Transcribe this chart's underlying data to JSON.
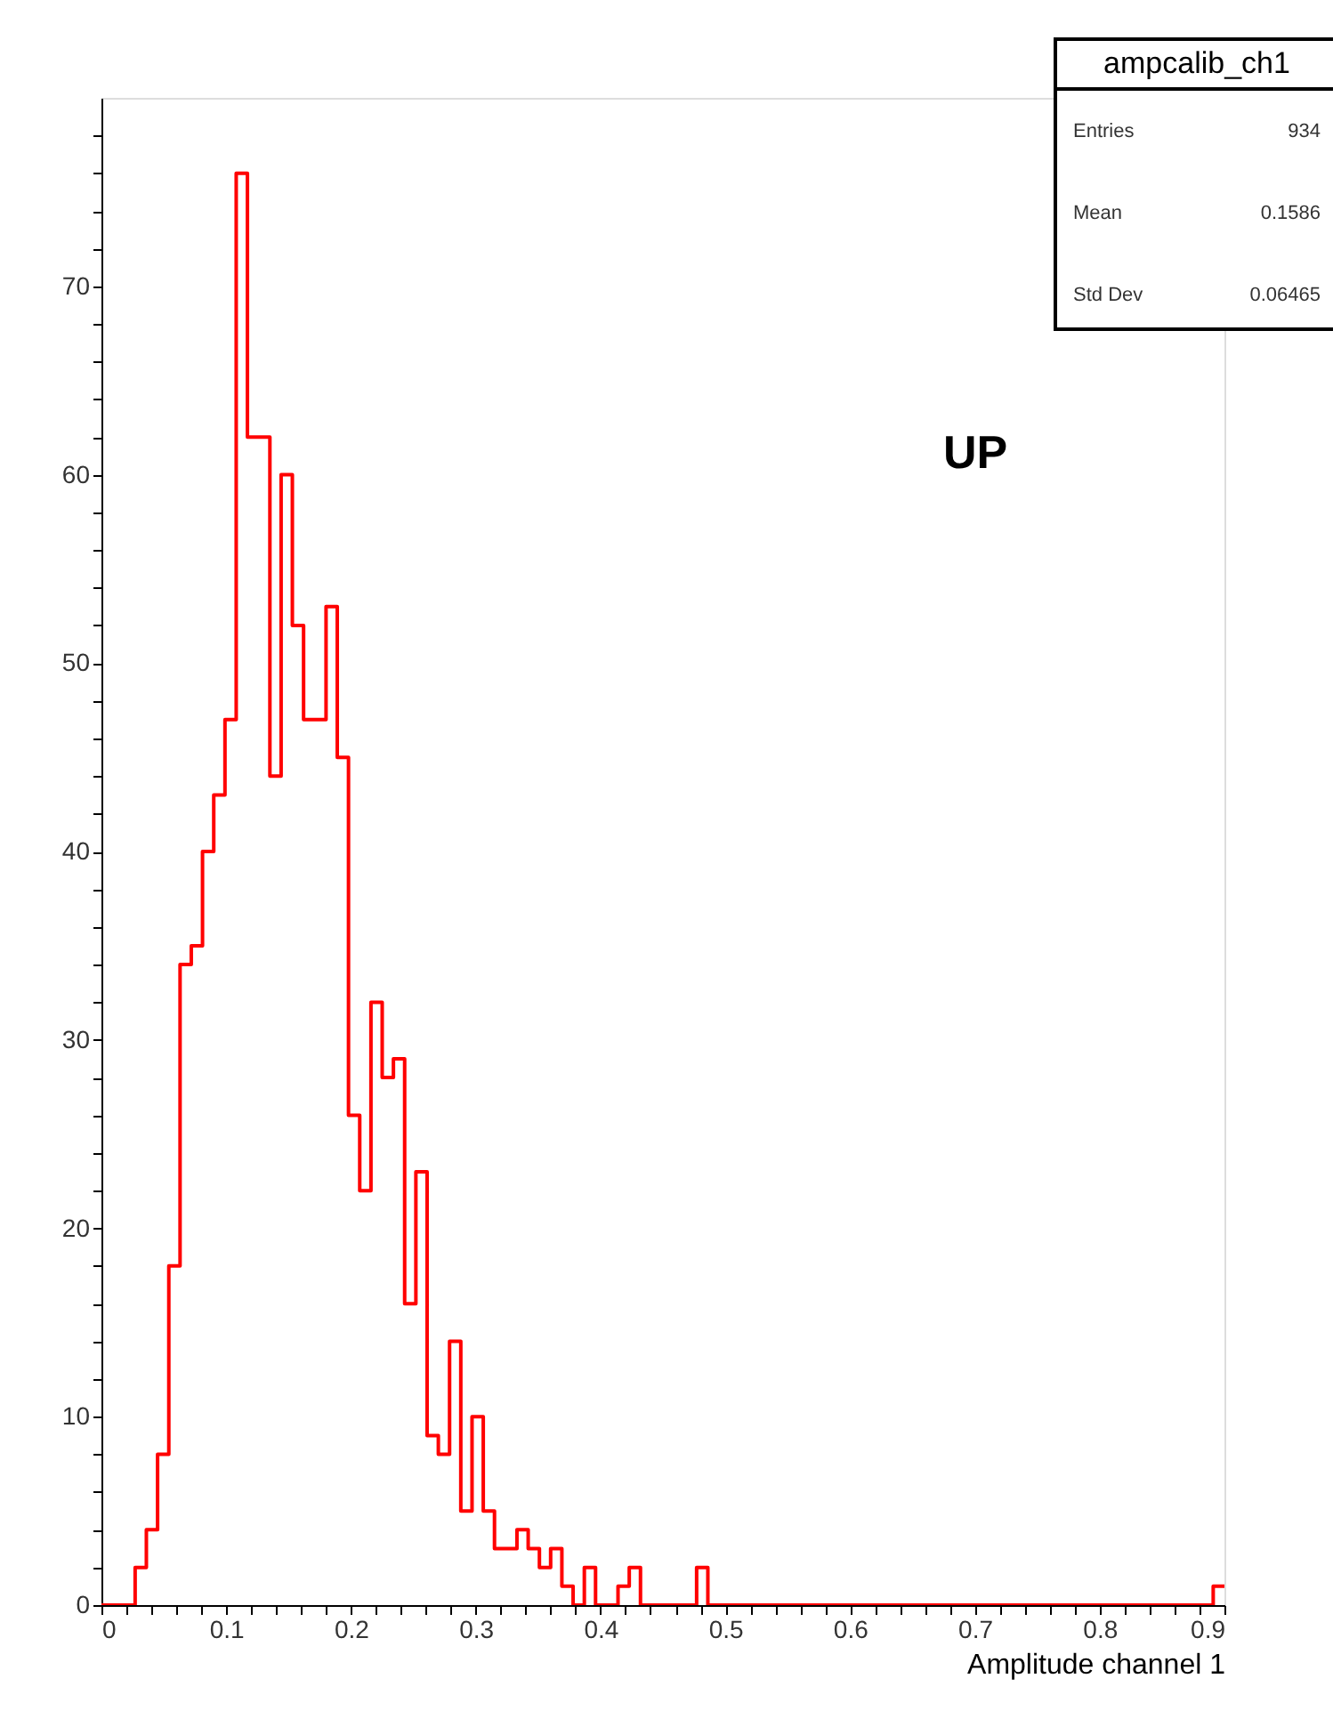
{
  "chart_data": {
    "type": "histogram",
    "title": "ampcalib_ch1",
    "xlabel": "Amplitude channel 1",
    "annotations": [
      "Entries 934",
      "Mean 0.1586",
      "Std Dev 0.06465",
      "UP"
    ],
    "color": "#ff0000",
    "bins": [
      0,
      0.009,
      0.018,
      0.027,
      0.036,
      0.045,
      0.054,
      0.063,
      0.072,
      0.081,
      0.09,
      0.099,
      0.108,
      0.117,
      0.126,
      0.135,
      0.144,
      0.153,
      0.162,
      0.171,
      0.18,
      0.189,
      0.198,
      0.207,
      0.216,
      0.225,
      0.234,
      0.243,
      0.252,
      0.261,
      0.27,
      0.279,
      0.288,
      0.297,
      0.306,
      0.315,
      0.324,
      0.333,
      0.342,
      0.351,
      0.36,
      0.369,
      0.378,
      0.387,
      0.396,
      0.405,
      0.414,
      0.423,
      0.432,
      0.441,
      0.45,
      0.459,
      0.468,
      0.477,
      0.486,
      0.495,
      0.504,
      0.513,
      0.522,
      0.531,
      0.54,
      0.549,
      0.558,
      0.567,
      0.576,
      0.585,
      0.594,
      0.603,
      0.612,
      0.621,
      0.63,
      0.639,
      0.648,
      0.657,
      0.666,
      0.675,
      0.684,
      0.693,
      0.702,
      0.711,
      0.72,
      0.729,
      0.738,
      0.747,
      0.756,
      0.765,
      0.774,
      0.783,
      0.792,
      0.801,
      0.81,
      0.819,
      0.828,
      0.837,
      0.846,
      0.855,
      0.864,
      0.873,
      0.882,
      0.891,
      0.9
    ],
    "values": [
      0,
      0,
      0,
      2,
      4,
      8,
      18,
      34,
      35,
      40,
      43,
      47,
      76,
      62,
      62,
      44,
      60,
      52,
      47,
      47,
      53,
      45,
      26,
      22,
      32,
      28,
      29,
      16,
      23,
      9,
      8,
      14,
      5,
      10,
      5,
      3,
      3,
      4,
      3,
      2,
      3,
      1,
      0,
      2,
      0,
      0,
      1,
      2,
      0,
      0,
      0,
      0,
      0,
      2,
      0,
      0,
      0,
      0,
      0,
      0,
      0,
      0,
      0,
      0,
      0,
      0,
      0,
      0,
      0,
      0,
      0,
      0,
      0,
      0,
      0,
      0,
      0,
      0,
      0,
      0,
      0,
      0,
      0,
      0,
      0,
      0,
      0,
      0,
      0,
      0,
      0,
      0,
      0,
      0,
      0,
      0,
      0,
      0,
      0,
      1
    ],
    "xlim": [
      0,
      0.9
    ],
    "xticks": [
      0,
      {
        "value": 0.02,
        "label": null
      },
      {
        "value": 0.04,
        "label": null
      },
      {
        "value": 0.06,
        "label": null
      },
      {
        "value": 0.08,
        "label": null
      },
      0.1,
      {
        "value": 0.12,
        "label": null
      },
      {
        "value": 0.14,
        "label": null
      },
      {
        "value": 0.16,
        "label": null
      },
      {
        "value": 0.18,
        "label": null
      },
      0.2,
      {
        "value": 0.22,
        "label": null
      },
      {
        "value": 0.24,
        "label": null
      },
      {
        "value": 0.26,
        "label": null
      },
      {
        "value": 0.28,
        "label": null
      },
      0.3,
      {
        "value": 0.32,
        "label": null
      },
      {
        "value": 0.34,
        "label": null
      },
      {
        "value": 0.36,
        "label": null
      },
      {
        "value": 0.38,
        "label": null
      },
      0.4,
      {
        "value": 0.42,
        "label": null
      },
      {
        "value": 0.44,
        "label": null
      },
      {
        "value": 0.46,
        "label": null
      },
      {
        "value": 0.48,
        "label": null
      },
      0.5,
      {
        "value": 0.52,
        "label": null
      },
      {
        "value": 0.54,
        "label": null
      },
      {
        "value": 0.56,
        "label": null
      },
      {
        "value": 0.58,
        "label": null
      },
      0.6,
      {
        "value": 0.62,
        "label": null
      },
      {
        "value": 0.64,
        "label": null
      },
      {
        "value": 0.66,
        "label": null
      },
      {
        "value": 0.68,
        "label": null
      },
      0.7,
      {
        "value": 0.72,
        "label": null
      },
      {
        "value": 0.74,
        "label": null
      },
      {
        "value": 0.76,
        "label": null
      },
      {
        "value": 0.78,
        "label": null
      },
      0.8,
      {
        "value": 0.82,
        "label": null
      },
      {
        "value": 0.84,
        "label": null
      },
      {
        "value": 0.86,
        "label": null
      },
      {
        "value": 0.88,
        "label": null
      },
      0.9
    ],
    "ylim": [
      0,
      80
    ],
    "yticks": [
      0,
      {
        "value": 2,
        "label": null
      },
      {
        "value": 4,
        "label": null
      },
      {
        "value": 6,
        "label": null
      },
      {
        "value": 8,
        "label": null
      },
      10,
      {
        "value": 12,
        "label": null
      },
      {
        "value": 14,
        "label": null
      },
      {
        "value": 16,
        "label": null
      },
      {
        "value": 18,
        "label": null
      },
      20,
      {
        "value": 22,
        "label": null
      },
      {
        "value": 24,
        "label": null
      },
      {
        "value": 26,
        "label": null
      },
      {
        "value": 28,
        "label": null
      },
      30,
      {
        "value": 32,
        "label": null
      },
      {
        "value": 34,
        "label": null
      },
      {
        "value": 36,
        "label": null
      },
      {
        "value": 38,
        "label": null
      },
      40,
      {
        "value": 42,
        "label": null
      },
      {
        "value": 44,
        "label": null
      },
      {
        "value": 46,
        "label": null
      },
      {
        "value": 48,
        "label": null
      },
      50,
      {
        "value": 52,
        "label": null
      },
      {
        "value": 54,
        "label": null
      },
      {
        "value": 56,
        "label": null
      },
      {
        "value": 58,
        "label": null
      },
      60,
      {
        "value": 62,
        "label": null
      },
      {
        "value": 64,
        "label": null
      },
      {
        "value": 66,
        "label": null
      },
      {
        "value": 68,
        "label": null
      },
      70,
      {
        "value": 72,
        "label": null
      },
      {
        "value": 74,
        "label": null
      },
      {
        "value": 76,
        "label": null
      },
      {
        "value": 78,
        "label": null
      }
    ]
  }
}
